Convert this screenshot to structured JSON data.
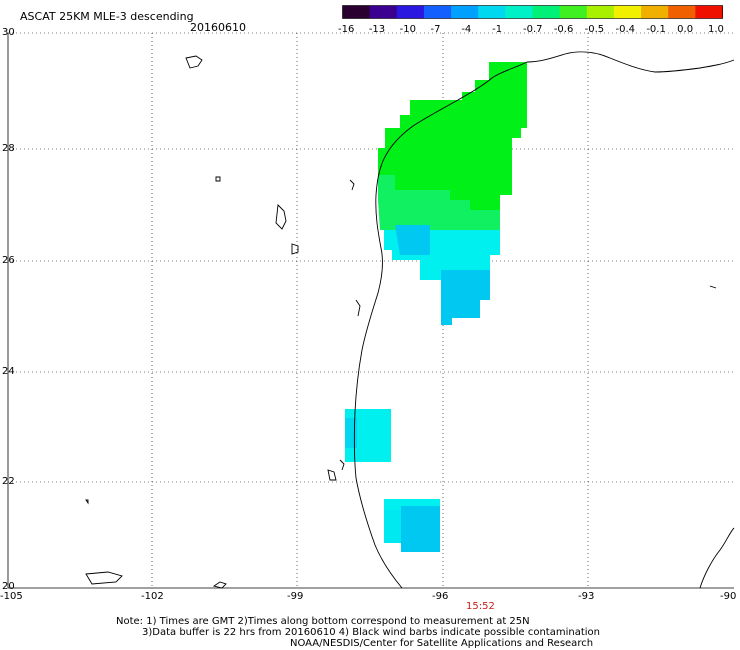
{
  "title": "ASCAT 25KM MLE-3 descending",
  "date": "20160610",
  "colorbar": {
    "ticks": [
      "-16",
      "-13",
      "-10",
      "-7",
      "-4",
      "-1",
      "-0.7",
      "-0.6",
      "-0.5",
      "-0.4",
      "-0.1",
      "0.0",
      "1.0"
    ],
    "colors": [
      "#2a0030",
      "#3b0090",
      "#2a18e0",
      "#1460ff",
      "#00a0ff",
      "#00d8f0",
      "#00f0c8",
      "#00f078",
      "#40f020",
      "#a8f000",
      "#f0f000",
      "#f0b000",
      "#f06000",
      "#f01000"
    ]
  },
  "map": {
    "lat_labels": [
      "30",
      "28",
      "26",
      "24",
      "22",
      "20"
    ],
    "lon_labels": [
      "-105",
      "-102",
      "-99",
      "-96",
      "-93",
      "-90"
    ],
    "pass_time": "15:52",
    "palette": {
      "green": "#00f018",
      "green_light": "#10f060",
      "cyan": "#00f0f0",
      "sky": "#00c8f0"
    }
  },
  "notes": {
    "line1": "Note: 1) Times are GMT 2)Times along bottom correspond to measurement at 25N",
    "line2": "3)Data buffer is 22 hrs from 20160610 4) Black wind barbs indicate possible contamination",
    "line3": "NOAA/NESDIS/Center for Satellite Applications and Research"
  }
}
